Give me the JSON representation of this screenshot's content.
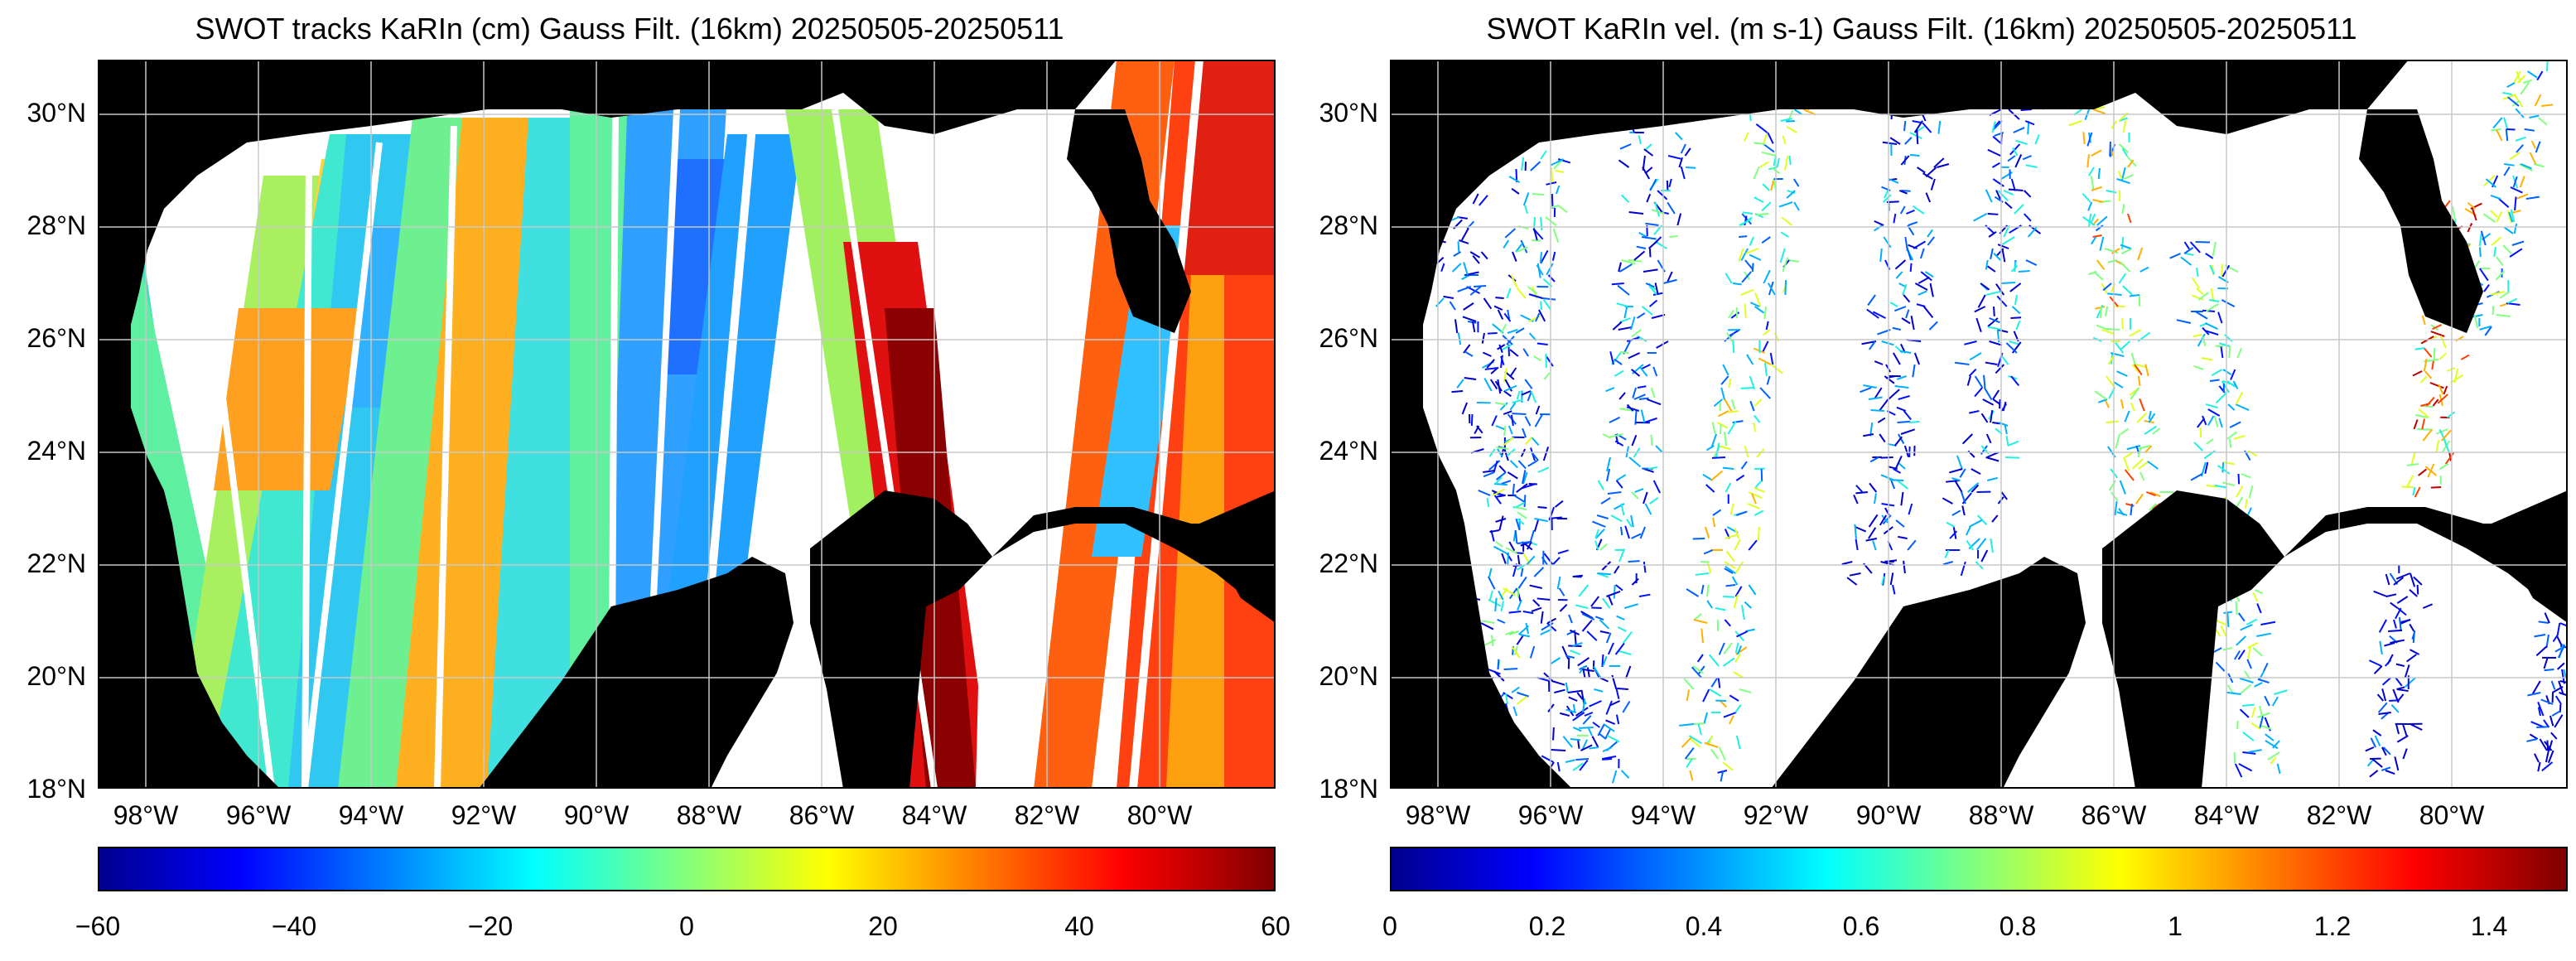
{
  "panels": [
    {
      "title": "SWOT tracks KaRIn (cm) Gauss Filt. (16km) 20250505-20250511",
      "lat_labels": [
        "30°N",
        "28°N",
        "26°N",
        "24°N",
        "22°N",
        "20°N",
        "18°N"
      ],
      "lon_labels": [
        "98°W",
        "96°W",
        "94°W",
        "92°W",
        "90°W",
        "88°W",
        "86°W",
        "84°W",
        "82°W",
        "80°W"
      ],
      "colorbar": {
        "min": -60,
        "max": 60,
        "tick_labels": [
          "−60",
          "−40",
          "−20",
          "0",
          "20",
          "40",
          "60"
        ]
      }
    },
    {
      "title": "SWOT KaRIn vel. (m s-1) Gauss Filt. (16km) 20250505-20250511",
      "lat_labels": [
        "30°N",
        "28°N",
        "26°N",
        "24°N",
        "22°N",
        "20°N",
        "18°N"
      ],
      "lon_labels": [
        "98°W",
        "96°W",
        "94°W",
        "92°W",
        "90°W",
        "88°W",
        "86°W",
        "84°W",
        "82°W",
        "80°W"
      ],
      "colorbar": {
        "min": 0,
        "max": 1.5,
        "tick_labels": [
          "0",
          "0.2",
          "0.4",
          "0.6",
          "0.8",
          "1",
          "1.2",
          "1.4"
        ]
      }
    }
  ],
  "colors": {
    "land": "#000000",
    "ocean": "#ffffff",
    "grid": "#cccccc"
  },
  "colormap": "jet"
}
